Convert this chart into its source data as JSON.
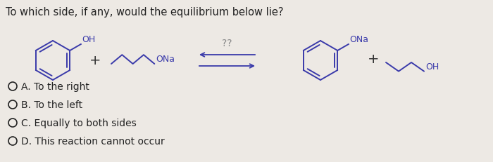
{
  "title": "To which side, if any, would the equilibrium below lie?",
  "title_fontsize": 10.5,
  "title_color": "#222222",
  "bg_color": "#ede9e4",
  "choices": [
    "A. To the right",
    "B. To the left",
    "C. Equally to both sides",
    "D. This reaction cannot occur"
  ],
  "choice_fontsize": 10,
  "choice_color": "#222222",
  "structure_color": "#3a3aaa",
  "plus_color": "#333333",
  "qmark_color": "#888888",
  "arrow_color": "#3a3aaa"
}
